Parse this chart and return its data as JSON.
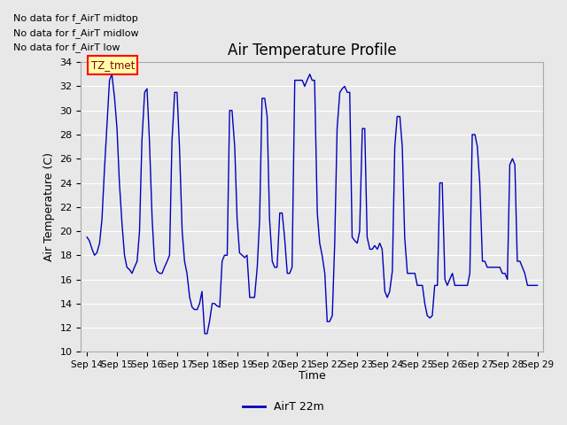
{
  "title": "Air Temperature Profile",
  "xlabel": "Time",
  "ylabel": "Air Temperature (C)",
  "ylim": [
    10,
    34
  ],
  "yticks": [
    10,
    12,
    14,
    16,
    18,
    20,
    22,
    24,
    26,
    28,
    30,
    32,
    34
  ],
  "x_labels": [
    "Sep 14",
    "Sep 15",
    "Sep 16",
    "Sep 17",
    "Sep 18",
    "Sep 19",
    "Sep 20",
    "Sep 21",
    "Sep 22",
    "Sep 23",
    "Sep 24",
    "Sep 25",
    "Sep 26",
    "Sep 27",
    "Sep 28",
    "Sep 29"
  ],
  "no_data_texts": [
    "No data for f_AirT low",
    "No data for f_AirT midlow",
    "No data for f_AirT midtop"
  ],
  "legend_label": "AirT 22m",
  "line_color": "#0000bb",
  "bg_color": "#e8e8e8",
  "plot_bg_color": "#e8e8e8",
  "grid_color": "#ffffff",
  "tz_label": "TZ_tmet",
  "time_data": [
    0.0,
    0.08,
    0.17,
    0.25,
    0.33,
    0.42,
    0.5,
    0.58,
    0.67,
    0.75,
    0.83,
    0.92,
    1.0,
    1.08,
    1.17,
    1.25,
    1.33,
    1.42,
    1.5,
    1.58,
    1.67,
    1.75,
    1.83,
    1.92,
    2.0,
    2.08,
    2.17,
    2.25,
    2.33,
    2.42,
    2.5,
    2.58,
    2.67,
    2.75,
    2.83,
    2.92,
    3.0,
    3.08,
    3.17,
    3.25,
    3.33,
    3.42,
    3.5,
    3.58,
    3.67,
    3.75,
    3.83,
    3.92,
    4.0,
    4.08,
    4.17,
    4.25,
    4.33,
    4.42,
    4.5,
    4.58,
    4.67,
    4.75,
    4.83,
    4.92,
    5.0,
    5.08,
    5.17,
    5.25,
    5.33,
    5.42,
    5.5,
    5.58,
    5.67,
    5.75,
    5.83,
    5.92,
    6.0,
    6.08,
    6.17,
    6.25,
    6.33,
    6.42,
    6.5,
    6.58,
    6.67,
    6.75,
    6.83,
    6.92,
    7.0,
    7.08,
    7.17,
    7.25,
    7.33,
    7.42,
    7.5,
    7.58,
    7.67,
    7.75,
    7.83,
    7.92,
    8.0,
    8.08,
    8.17,
    8.25,
    8.33,
    8.42,
    8.5,
    8.58,
    8.67,
    8.75,
    8.83,
    8.92,
    9.0,
    9.08,
    9.17,
    9.25,
    9.33,
    9.42,
    9.5,
    9.58,
    9.67,
    9.75,
    9.83,
    9.92,
    10.0,
    10.08,
    10.17,
    10.25,
    10.33,
    10.42,
    10.5,
    10.58,
    10.67,
    10.75,
    10.83,
    10.92,
    11.0,
    11.08,
    11.17,
    11.25,
    11.33,
    11.42,
    11.5,
    11.58,
    11.67,
    11.75,
    11.83,
    11.92,
    12.0,
    12.08,
    12.17,
    12.25,
    12.33,
    12.42,
    12.5,
    12.58,
    12.67,
    12.75,
    12.83,
    12.92,
    13.0,
    13.08,
    13.17,
    13.25,
    13.33,
    13.42,
    13.5,
    13.58,
    13.67,
    13.75,
    13.83,
    13.92,
    14.0,
    14.08,
    14.17,
    14.25,
    14.33,
    14.42,
    14.5,
    14.58,
    14.67,
    14.75,
    14.83,
    14.92,
    15.0
  ],
  "temp_data": [
    19.5,
    19.2,
    18.5,
    18.0,
    18.2,
    19.0,
    21.0,
    25.0,
    29.0,
    32.5,
    33.0,
    31.0,
    28.5,
    24.0,
    20.5,
    18.0,
    17.0,
    16.8,
    16.5,
    17.0,
    17.5,
    20.0,
    27.5,
    31.5,
    31.8,
    27.5,
    21.0,
    17.5,
    16.7,
    16.5,
    16.5,
    17.0,
    17.5,
    18.0,
    27.4,
    31.5,
    31.5,
    27.0,
    20.0,
    17.5,
    16.5,
    14.5,
    13.7,
    13.5,
    13.5,
    14.0,
    15.0,
    11.5,
    11.5,
    12.5,
    14.0,
    14.0,
    13.8,
    13.7,
    17.5,
    18.0,
    18.0,
    30.0,
    30.0,
    27.0,
    21.0,
    18.2,
    18.0,
    17.8,
    18.0,
    14.5,
    14.5,
    14.5,
    17.0,
    21.0,
    31.0,
    31.0,
    29.5,
    21.0,
    17.5,
    17.0,
    17.0,
    21.5,
    21.5,
    19.5,
    16.5,
    16.5,
    17.0,
    32.5,
    32.5,
    32.5,
    32.5,
    32.0,
    32.5,
    33.0,
    32.5,
    32.5,
    21.5,
    19.0,
    18.0,
    16.5,
    12.5,
    12.5,
    13.0,
    19.0,
    28.5,
    31.5,
    31.8,
    32.0,
    31.5,
    31.5,
    19.5,
    19.2,
    19.0,
    20.0,
    28.5,
    28.5,
    19.5,
    18.5,
    18.5,
    18.8,
    18.5,
    19.0,
    18.5,
    15.0,
    14.5,
    15.0,
    16.7,
    27.0,
    29.5,
    29.5,
    27.0,
    19.5,
    16.5,
    16.5,
    16.5,
    16.5,
    15.5,
    15.5,
    15.5,
    14.0,
    13.0,
    12.8,
    13.0,
    15.5,
    15.5,
    24.0,
    24.0,
    16.0,
    15.5,
    16.0,
    16.5,
    15.5,
    15.5,
    15.5,
    15.5,
    15.5,
    15.5,
    16.5,
    28.0,
    28.0,
    27.0,
    24.0,
    17.5,
    17.5,
    17.0,
    17.0,
    17.0,
    17.0,
    17.0,
    17.0,
    16.5,
    16.5,
    16.0,
    25.5,
    26.0,
    25.5,
    17.5,
    17.5,
    17.0,
    16.5,
    15.5,
    15.5,
    15.5,
    15.5,
    15.5
  ]
}
